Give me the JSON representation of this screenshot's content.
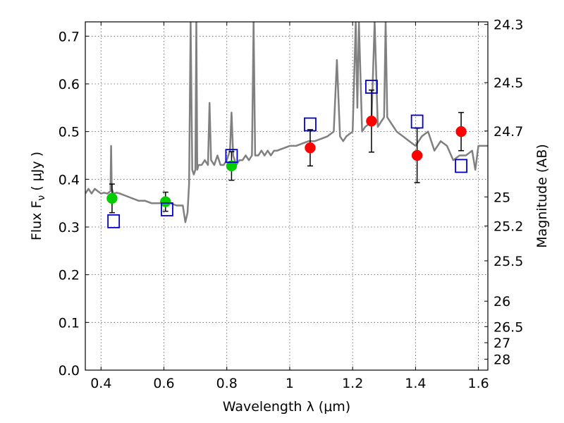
{
  "chart_data": {
    "type": "scatter",
    "xlabel": "Wavelength  λ (μm)",
    "ylabel": "Flux  F",
    "ylabel_sub": "ν",
    "ylabel_unit": "  ( μJy )",
    "y2label": "Magnitude (AB)",
    "xlim": [
      0.35,
      1.63
    ],
    "ylim": [
      0.0,
      0.73
    ],
    "grid": true,
    "x_ticks": [
      0.4,
      0.6,
      0.8,
      1.0,
      1.2,
      1.4,
      1.6
    ],
    "x_tick_labels": [
      "0.4",
      "0.6",
      "0.8",
      "1",
      "1.2",
      "1.4",
      "1.6"
    ],
    "y_ticks": [
      0.0,
      0.1,
      0.2,
      0.3,
      0.4,
      0.5,
      0.6,
      0.7
    ],
    "y_tick_labels": [
      "0.0",
      "0.1",
      "0.2",
      "0.3",
      "0.4",
      "0.5",
      "0.6",
      "0.7"
    ],
    "y2_tick_labels": [
      "24.3",
      "24.5",
      "24.7",
      "25",
      "25.2",
      "25.5",
      "26",
      "26.5",
      "27",
      "28"
    ],
    "y2_tick_flux": [
      0.7245,
      0.6026,
      0.5012,
      0.3631,
      0.302,
      0.2291,
      0.1445,
      0.0912,
      0.0575,
      0.0229
    ],
    "colors": {
      "model": "#808080",
      "green": "#00cc00",
      "red": "#ff0000",
      "square": "#0000cc",
      "errorbar": "#000000",
      "grid": "#555555"
    },
    "model_spectrum": {
      "x": [
        0.35,
        0.36,
        0.37,
        0.38,
        0.39,
        0.4,
        0.41,
        0.42,
        0.43,
        0.432,
        0.434,
        0.44,
        0.45,
        0.46,
        0.48,
        0.5,
        0.52,
        0.54,
        0.56,
        0.58,
        0.6,
        0.62,
        0.64,
        0.66,
        0.668,
        0.675,
        0.68,
        0.685,
        0.69,
        0.695,
        0.7,
        0.703,
        0.706,
        0.71,
        0.72,
        0.73,
        0.74,
        0.745,
        0.75,
        0.76,
        0.77,
        0.78,
        0.79,
        0.8,
        0.81,
        0.815,
        0.82,
        0.825,
        0.83,
        0.84,
        0.85,
        0.86,
        0.87,
        0.88,
        0.885,
        0.89,
        0.9,
        0.91,
        0.92,
        0.93,
        0.94,
        0.95,
        0.96,
        0.98,
        1.0,
        1.02,
        1.04,
        1.06,
        1.08,
        1.1,
        1.12,
        1.14,
        1.15,
        1.16,
        1.17,
        1.18,
        1.2,
        1.21,
        1.215,
        1.22,
        1.23,
        1.24,
        1.26,
        1.27,
        1.28,
        1.29,
        1.3,
        1.305,
        1.31,
        1.32,
        1.34,
        1.36,
        1.38,
        1.4,
        1.42,
        1.44,
        1.46,
        1.48,
        1.5,
        1.52,
        1.54,
        1.56,
        1.58,
        1.59,
        1.6,
        1.62,
        1.63
      ],
      "y": [
        0.37,
        0.38,
        0.37,
        0.38,
        0.375,
        0.37,
        0.372,
        0.37,
        0.375,
        0.47,
        0.38,
        0.37,
        0.372,
        0.37,
        0.365,
        0.36,
        0.355,
        0.355,
        0.35,
        0.35,
        0.35,
        0.35,
        0.345,
        0.345,
        0.31,
        0.33,
        0.39,
        0.73,
        0.42,
        0.41,
        0.42,
        0.73,
        0.42,
        0.43,
        0.43,
        0.44,
        0.43,
        0.56,
        0.44,
        0.43,
        0.45,
        0.43,
        0.43,
        0.44,
        0.46,
        0.54,
        0.45,
        0.44,
        0.43,
        0.44,
        0.44,
        0.45,
        0.44,
        0.45,
        0.73,
        0.45,
        0.45,
        0.46,
        0.45,
        0.46,
        0.45,
        0.46,
        0.46,
        0.465,
        0.47,
        0.47,
        0.475,
        0.48,
        0.48,
        0.485,
        0.49,
        0.5,
        0.65,
        0.49,
        0.48,
        0.49,
        0.5,
        0.73,
        0.55,
        0.73,
        0.5,
        0.51,
        0.52,
        0.73,
        0.51,
        0.52,
        0.53,
        0.73,
        0.53,
        0.52,
        0.5,
        0.49,
        0.48,
        0.47,
        0.49,
        0.5,
        0.46,
        0.48,
        0.47,
        0.44,
        0.45,
        0.45,
        0.46,
        0.42,
        0.47,
        0.47,
        0.47
      ]
    },
    "series": [
      {
        "name": "",
        "marker": "circle",
        "color": "#00cc00",
        "points": [
          {
            "x": 0.435,
            "y": 0.36,
            "err": 0.03
          },
          {
            "x": 0.605,
            "y": 0.353,
            "err": 0.02
          },
          {
            "x": 0.815,
            "y": 0.428,
            "err": 0.03
          }
        ]
      },
      {
        "name": "",
        "marker": "circle",
        "color": "#ff0000",
        "points": [
          {
            "x": 1.065,
            "y": 0.466,
            "err": 0.038
          },
          {
            "x": 1.26,
            "y": 0.522,
            "err": 0.065
          },
          {
            "x": 1.405,
            "y": 0.45,
            "err": 0.057
          },
          {
            "x": 1.545,
            "y": 0.5,
            "err": 0.04
          }
        ]
      },
      {
        "name": "",
        "marker": "square",
        "color": "#0000cc",
        "points": [
          {
            "x": 0.44,
            "y": 0.312
          },
          {
            "x": 0.61,
            "y": 0.337
          },
          {
            "x": 0.815,
            "y": 0.449
          },
          {
            "x": 1.065,
            "y": 0.515
          },
          {
            "x": 1.26,
            "y": 0.594
          },
          {
            "x": 1.405,
            "y": 0.521
          },
          {
            "x": 1.545,
            "y": 0.428
          }
        ]
      }
    ]
  }
}
